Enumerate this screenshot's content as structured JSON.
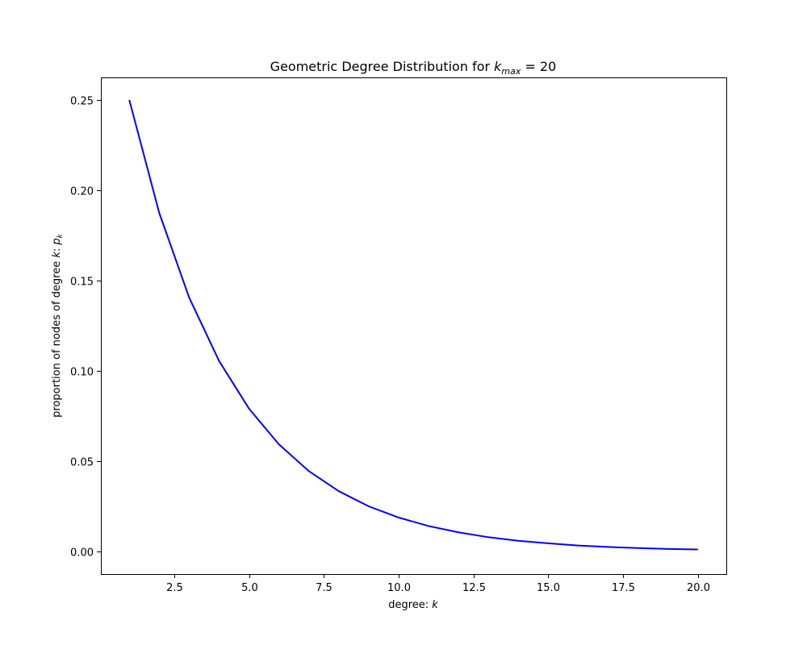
{
  "chart_data": {
    "type": "line",
    "title_prefix": "Geometric Degree Distribution for ",
    "title_k": "k",
    "title_sub": "max",
    "title_suffix": " = 20",
    "xlabel_prefix": "degree: ",
    "xlabel_var": "k",
    "ylabel_prefix": "proportion of nodes of degree ",
    "ylabel_var1": "k",
    "ylabel_mid": ": ",
    "ylabel_var2": "p",
    "ylabel_sub": "k",
    "xlim": [
      0.05,
      20.95
    ],
    "ylim": [
      -0.0125,
      0.2625
    ],
    "x_ticks": [
      2.5,
      5.0,
      7.5,
      10.0,
      12.5,
      15.0,
      17.5,
      20.0
    ],
    "x_tick_labels": [
      "2.5",
      "5.0",
      "7.5",
      "10.0",
      "12.5",
      "15.0",
      "17.5",
      "20.0"
    ],
    "y_ticks": [
      0.0,
      0.05,
      0.1,
      0.15,
      0.2,
      0.25
    ],
    "y_tick_labels": [
      "0.00",
      "0.05",
      "0.10",
      "0.15",
      "0.20",
      "0.25"
    ],
    "grid": false,
    "series": [
      {
        "color": "#0000ff",
        "x": [
          1,
          2,
          3,
          4,
          5,
          6,
          7,
          8,
          9,
          10,
          11,
          12,
          13,
          14,
          15,
          16,
          17,
          18,
          19,
          20
        ],
        "y": [
          0.25,
          0.1875,
          0.1406,
          0.1055,
          0.0791,
          0.0593,
          0.0445,
          0.0334,
          0.025,
          0.0188,
          0.0141,
          0.0106,
          0.0079,
          0.0059,
          0.0045,
          0.0033,
          0.0025,
          0.0019,
          0.0014,
          0.0011
        ]
      }
    ]
  }
}
